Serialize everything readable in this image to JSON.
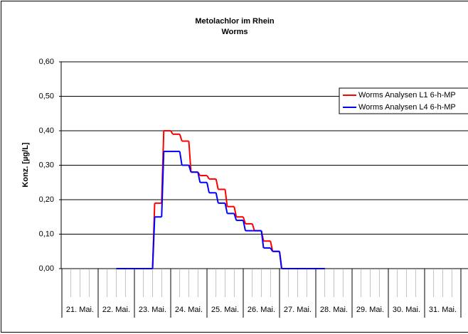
{
  "chart_data": {
    "type": "step-line",
    "title": "Metolachlor im Rhein",
    "subtitle": "Worms",
    "y_label": "Konz. [µg/L]",
    "x": [
      22.5,
      22.75,
      23.0,
      23.25,
      23.5,
      23.75,
      24.0,
      24.25,
      24.5,
      24.75,
      25.0,
      25.25,
      25.5,
      25.75,
      26.0,
      26.25,
      26.5,
      26.75,
      27.0,
      27.25,
      27.5,
      27.75,
      28.0
    ],
    "series": [
      {
        "name": "Worms Analysen L1 6-h-MP",
        "color": "#ff0000",
        "values": [
          0,
          0,
          0,
          0,
          0.19,
          0.4,
          0.39,
          0.37,
          0.28,
          0.27,
          0.26,
          0.23,
          0.18,
          0.15,
          0.13,
          0.11,
          0.08,
          0.05,
          0,
          0,
          0,
          0,
          0
        ]
      },
      {
        "name": "Worms Analysen L4 6-h-MP",
        "color": "#0000ff",
        "values": [
          0,
          0,
          0,
          0,
          0.15,
          0.34,
          0.34,
          0.3,
          0.28,
          0.25,
          0.22,
          0.19,
          0.16,
          0.14,
          0.11,
          0.11,
          0.06,
          0.05,
          0,
          0,
          0,
          0,
          0
        ]
      }
    ],
    "xlim": [
      21,
      32
    ],
    "xticks": [
      {
        "value": 21.5,
        "label": "21. Mai."
      },
      {
        "value": 22.5,
        "label": "22. Mai."
      },
      {
        "value": 23.5,
        "label": "23. Mai."
      },
      {
        "value": 24.5,
        "label": "24. Mai."
      },
      {
        "value": 25.5,
        "label": "25. Mai."
      },
      {
        "value": 26.5,
        "label": "26. Mai."
      },
      {
        "value": 27.5,
        "label": "27. Mai."
      },
      {
        "value": 28.5,
        "label": "28. Mai."
      },
      {
        "value": 29.5,
        "label": "29. Mai."
      },
      {
        "value": 30.5,
        "label": "30. Mai."
      },
      {
        "value": 31.5,
        "label": "31. Mai."
      }
    ],
    "ylim": [
      0,
      0.6
    ],
    "yticks": [
      {
        "value": 0,
        "label": "0,00"
      },
      {
        "value": 0.1,
        "label": "0,10"
      },
      {
        "value": 0.2,
        "label": "0,20"
      },
      {
        "value": 0.3,
        "label": "0,30"
      },
      {
        "value": 0.4,
        "label": "0,40"
      },
      {
        "value": 0.5,
        "label": "0,50"
      },
      {
        "value": 0.6,
        "label": "0,60"
      }
    ],
    "grid": true,
    "legend": "top-right"
  }
}
